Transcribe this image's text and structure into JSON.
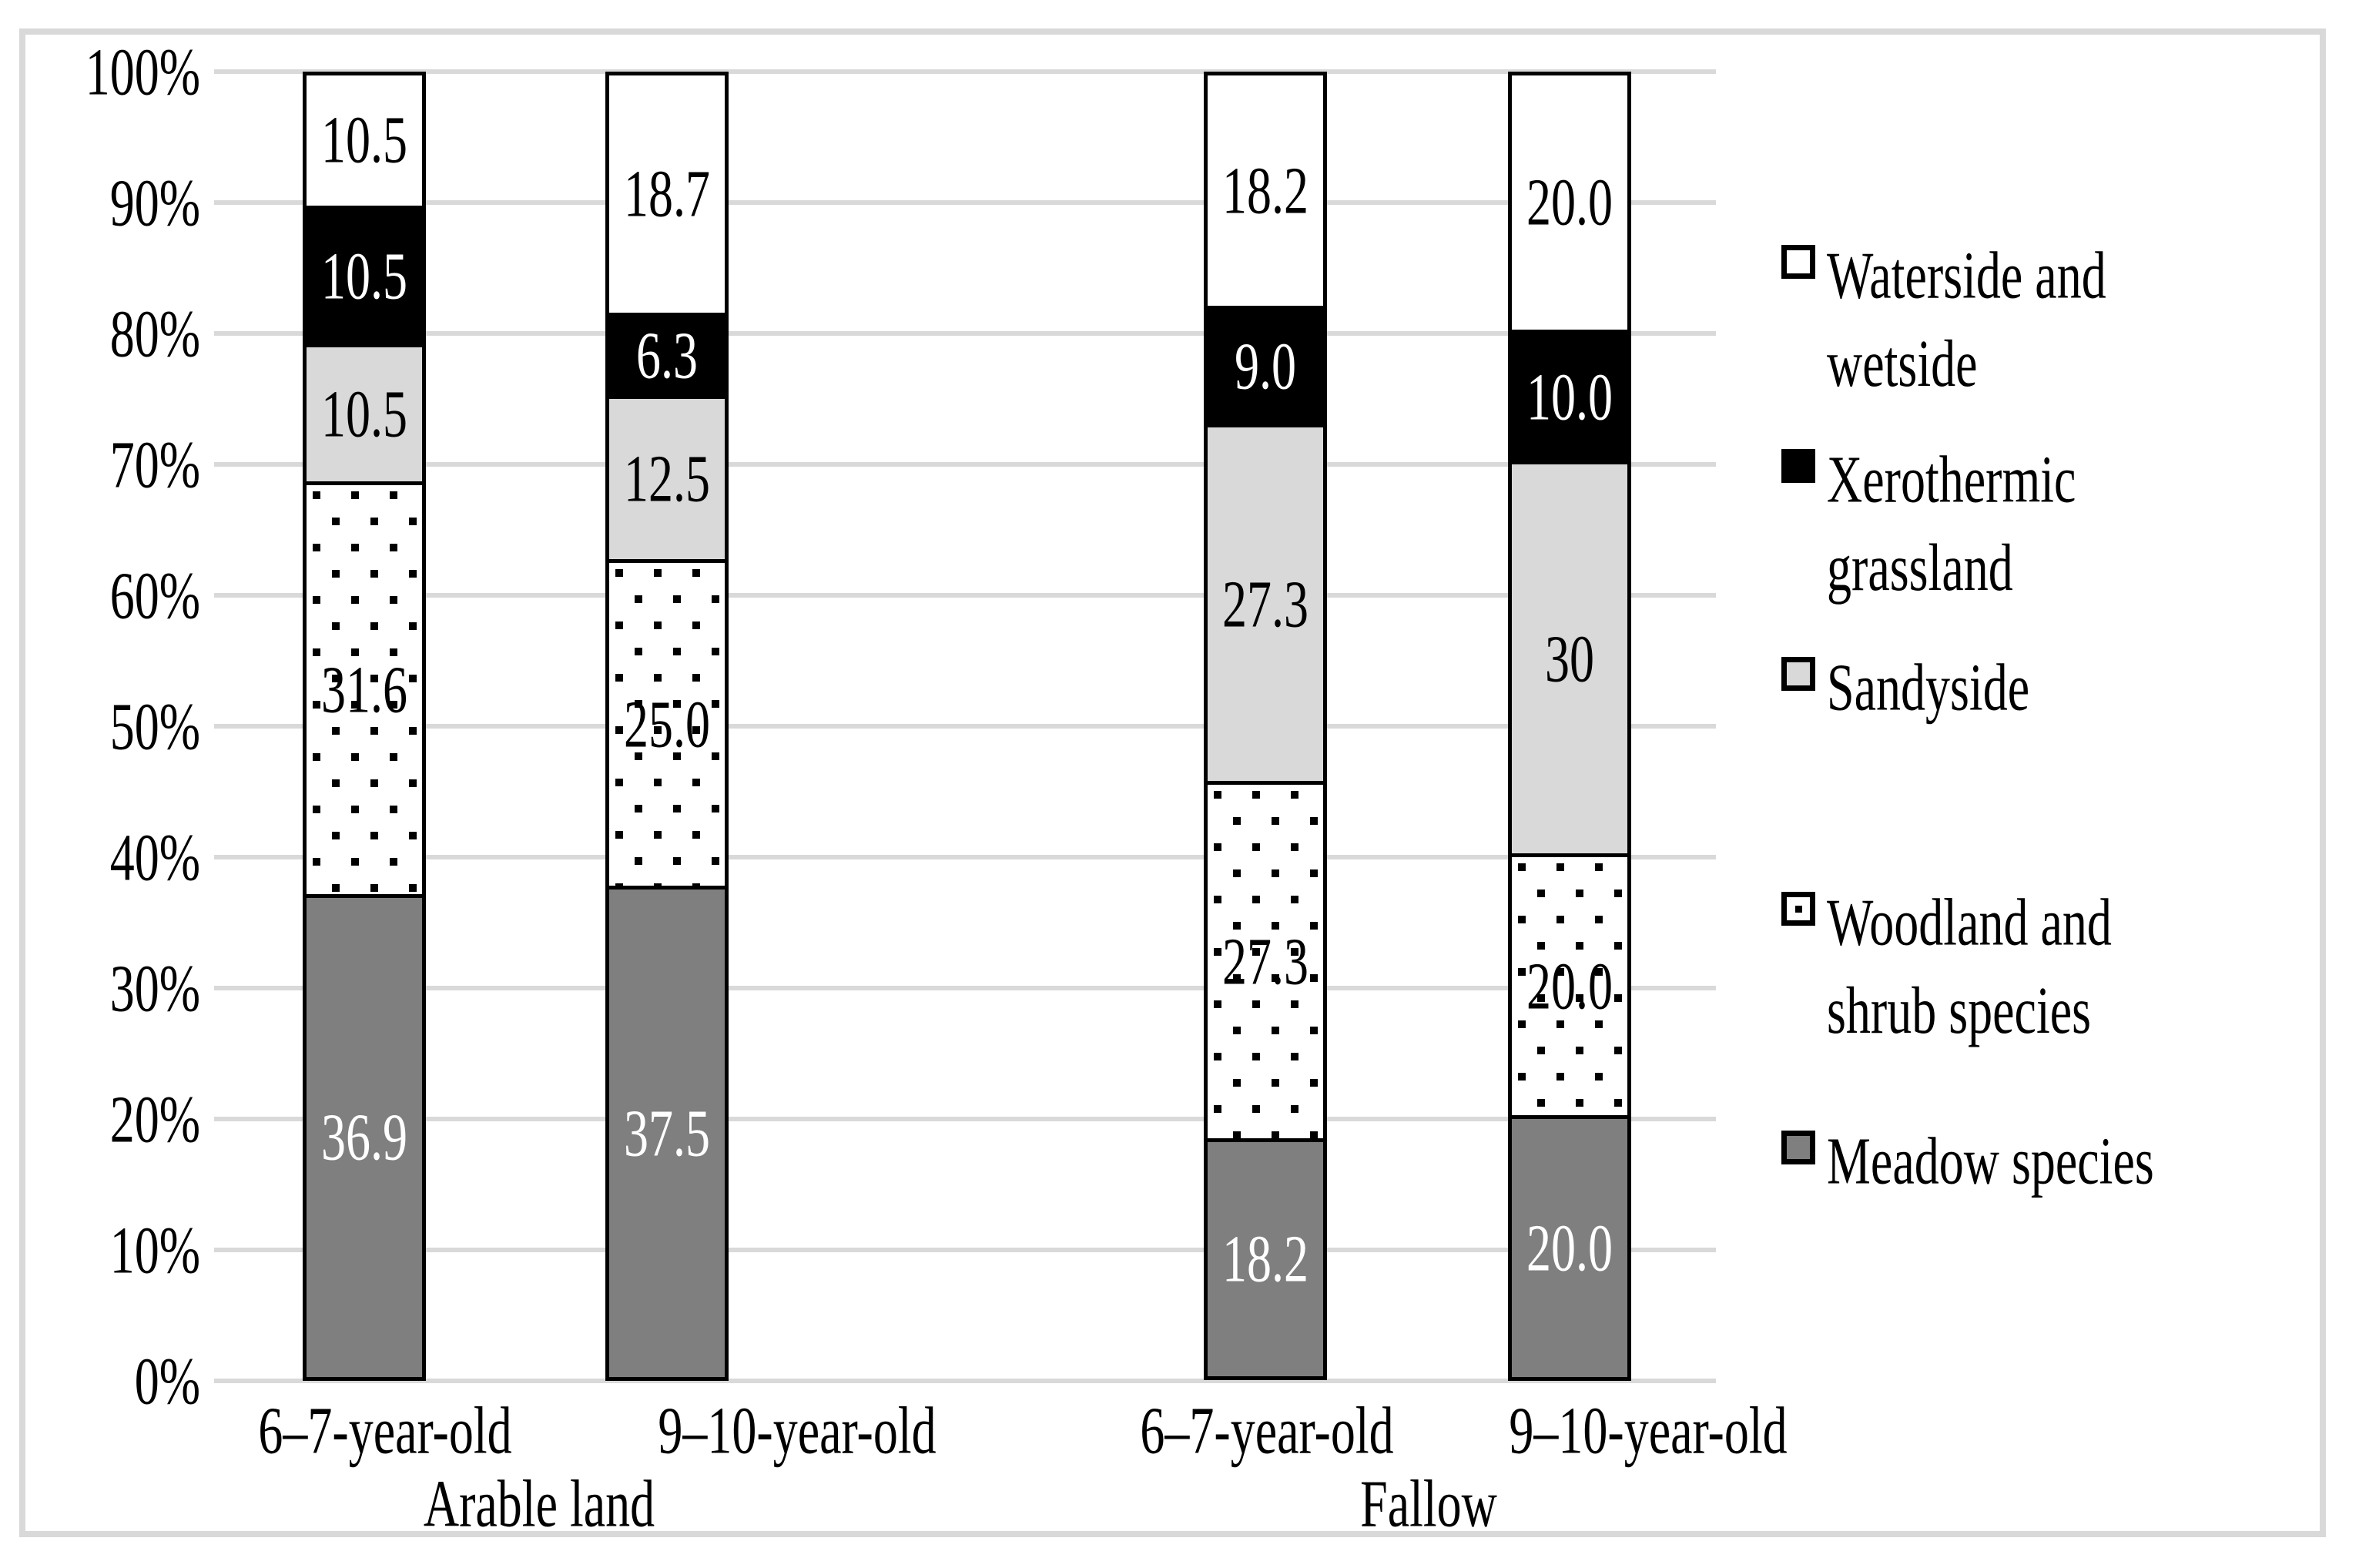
{
  "chart_data": {
    "type": "bar",
    "stacked_percent": true,
    "title": "",
    "xlabel": "",
    "ylabel": "",
    "ylim": [
      0,
      100
    ],
    "grid": true,
    "legend_position": "right",
    "yticks": [
      "100%",
      "90%",
      "80%",
      "70%",
      "60%",
      "50%",
      "40%",
      "30%",
      "20%",
      "10%",
      "0%"
    ],
    "categories": [
      "6–7-year-old",
      "9–10-year-old",
      "6–7-year-old",
      "9–10-year-old"
    ],
    "group_labels": [
      "Arable land",
      "Fallow"
    ],
    "series": [
      {
        "name": "Meadow species",
        "values": [
          36.9,
          37.5,
          18.2,
          20.0
        ],
        "labels": [
          "36.9",
          "37.5",
          "18.2",
          "20.0"
        ],
        "fill": "#7F7F7F",
        "pattern": "solid",
        "text_color": "#FFFFFF"
      },
      {
        "name": "Woodland and shrub species",
        "values": [
          31.6,
          25.0,
          27.3,
          20.0
        ],
        "labels": [
          "31.6",
          "25.0",
          "27.3",
          "20.0"
        ],
        "fill": "#FFFFFF",
        "pattern": "dots",
        "text_color": "#000000"
      },
      {
        "name": "Sandyside",
        "values": [
          10.5,
          12.5,
          27.3,
          30
        ],
        "labels": [
          "10.5",
          "12.5",
          "27.3",
          "30"
        ],
        "fill": "#D9D9D9",
        "pattern": "solid",
        "text_color": "#000000"
      },
      {
        "name": "Xerothermic grassland",
        "values": [
          10.5,
          6.3,
          9.0,
          10.0
        ],
        "labels": [
          "10.5",
          "6.3",
          "9.0",
          "10.0"
        ],
        "fill": "#000000",
        "pattern": "solid",
        "text_color": "#FFFFFF"
      },
      {
        "name": "Waterside and wetside",
        "values": [
          10.5,
          18.7,
          18.2,
          20.0
        ],
        "labels": [
          "10.5",
          "18.7",
          "18.2",
          "20.0"
        ],
        "fill": "#FFFFFF",
        "pattern": "solid",
        "text_color": "#000000"
      }
    ]
  },
  "legend": {
    "items": [
      {
        "label": "Waterside and wetside",
        "lines": [
          "Waterside and",
          "wetside"
        ],
        "swatch": "waterside",
        "fill": "#FFFFFF",
        "pattern": "solid"
      },
      {
        "label": "Xerothermic grassland",
        "lines": [
          "Xerothermic",
          "grassland"
        ],
        "swatch": "xerothermic",
        "fill": "#000000",
        "pattern": "solid"
      },
      {
        "label": "Sandyside",
        "lines": [
          "Sandyside"
        ],
        "swatch": "sandyside",
        "fill": "#D9D9D9",
        "pattern": "solid"
      },
      {
        "label": "Woodland and shrub species",
        "lines": [
          "Woodland and",
          "shrub species"
        ],
        "swatch": "woodland",
        "fill": "#FFFFFF",
        "pattern": "dots"
      },
      {
        "label": "Meadow species",
        "lines": [
          "Meadow species"
        ],
        "swatch": "meadow",
        "fill": "#7F7F7F",
        "pattern": "solid"
      }
    ]
  },
  "colors": {
    "grid": "#D9D9D9",
    "frame_border": "#D9D9D9",
    "bar_outline": "#000000",
    "meadow": "#7F7F7F",
    "sandyside": "#D9D9D9",
    "xerothermic": "#000000",
    "white": "#FFFFFF"
  }
}
